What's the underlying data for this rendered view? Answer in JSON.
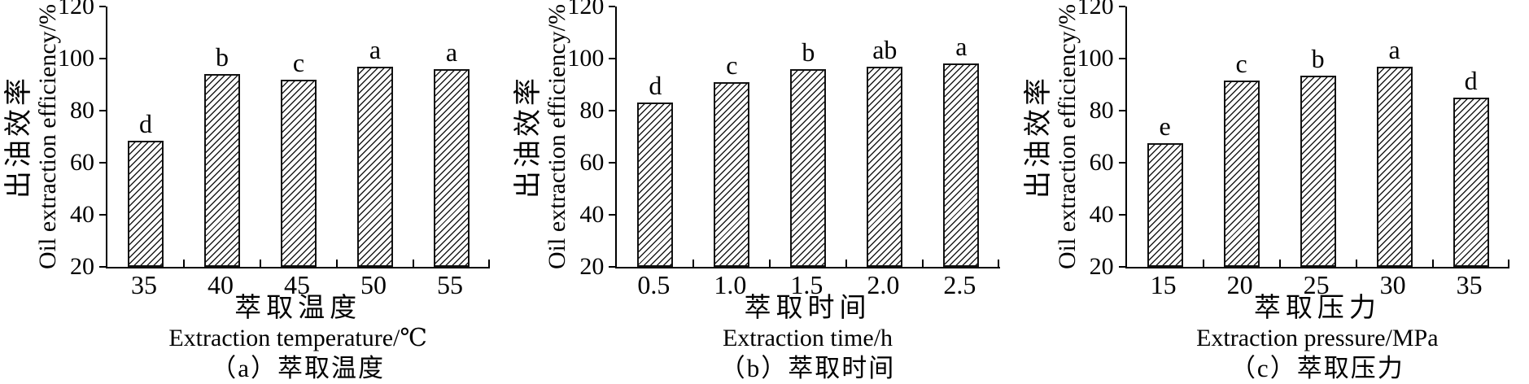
{
  "figure": {
    "ylabel_zh": "出油效率",
    "ylabel_en": "Oil extraction efficiency/%"
  },
  "chart_data": [
    {
      "type": "bar",
      "id": "a",
      "title": "（a）萃取温度",
      "xlabel_zh": "萃取温度",
      "xlabel_en": "Extraction temperature/℃",
      "ylabel_zh": "出油效率",
      "ylabel_en": "Oil extraction efficiency/%",
      "categories": [
        "35",
        "40",
        "45",
        "50",
        "55"
      ],
      "values": [
        68.5,
        94,
        92,
        97,
        96
      ],
      "bar_labels": [
        "d",
        "b",
        "c",
        "a",
        "a"
      ],
      "ylim": [
        20,
        120
      ],
      "yticks": [
        20,
        40,
        60,
        80,
        100,
        120
      ],
      "grid": "off",
      "hatch": "diagonal"
    },
    {
      "type": "bar",
      "id": "b",
      "title": "（b）萃取时间",
      "xlabel_zh": "萃取时间",
      "xlabel_en": "Extraction time/h",
      "ylabel_zh": "出油效率",
      "ylabel_en": "Oil extraction efficiency/%",
      "categories": [
        "0.5",
        "1.0",
        "1.5",
        "2.0",
        "2.5"
      ],
      "values": [
        83,
        91,
        96,
        97,
        98
      ],
      "bar_labels": [
        "d",
        "c",
        "b",
        "ab",
        "a"
      ],
      "ylim": [
        20,
        120
      ],
      "yticks": [
        20,
        40,
        60,
        80,
        100,
        120
      ],
      "grid": "off",
      "hatch": "diagonal"
    },
    {
      "type": "bar",
      "id": "c",
      "title": "（c）萃取压力",
      "xlabel_zh": "萃取压力",
      "xlabel_en": "Extraction pressure/MPa",
      "ylabel_zh": "出油效率",
      "ylabel_en": "Oil extraction efficiency/%",
      "categories": [
        "15",
        "20",
        "25",
        "30",
        "35"
      ],
      "values": [
        67.5,
        91.5,
        93.5,
        97,
        85
      ],
      "bar_labels": [
        "e",
        "c",
        "b",
        "a",
        "d"
      ],
      "ylim": [
        20,
        120
      ],
      "yticks": [
        20,
        40,
        60,
        80,
        100,
        120
      ],
      "grid": "off",
      "hatch": "diagonal"
    }
  ]
}
